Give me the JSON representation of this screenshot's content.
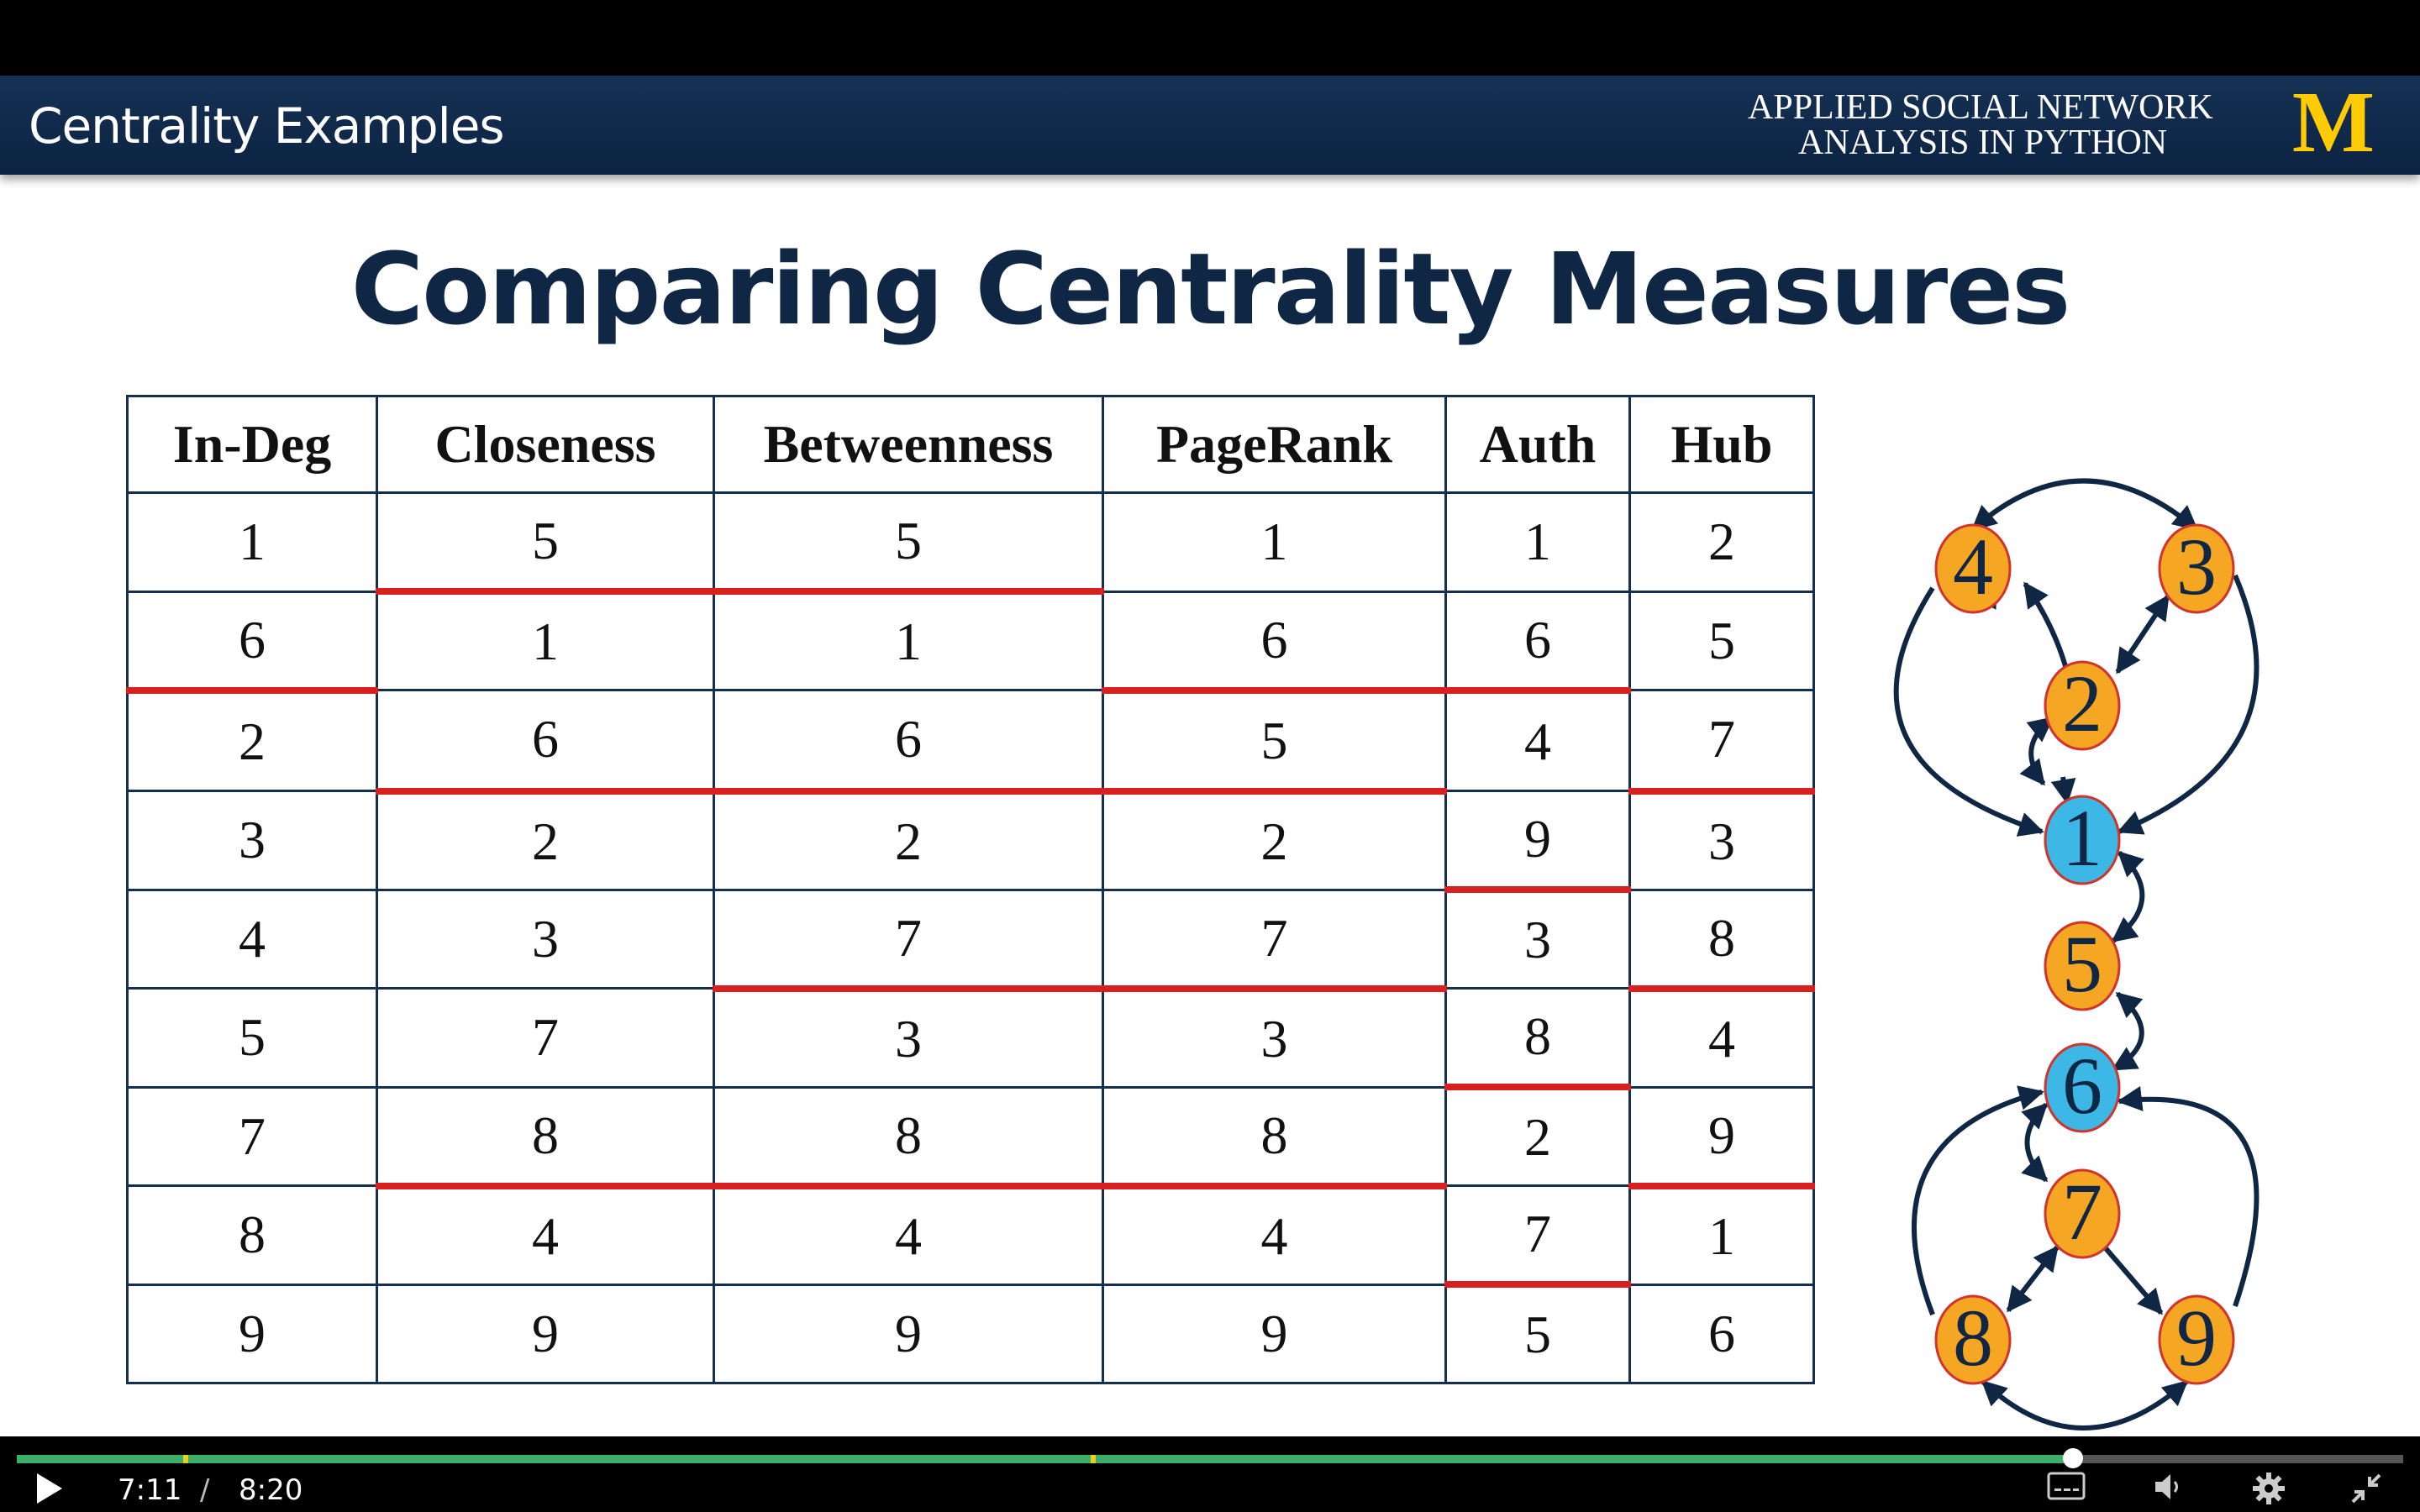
{
  "header": {
    "title": "Centrality Examples",
    "course_line1": "APPLIED SOCIAL NETWORK",
    "course_line2": "ANALYSIS IN PYTHON",
    "logo_letter": "M"
  },
  "page_title": "Comparing Centrality Measures",
  "table": {
    "headers": [
      "In-Deg",
      "Closeness",
      "Betweenness",
      "PageRank",
      "Auth",
      "Hub"
    ],
    "rows": [
      [
        "1",
        "5",
        "5",
        "1",
        "1",
        "2"
      ],
      [
        "6",
        "1",
        "1",
        "6",
        "6",
        "5"
      ],
      [
        "2",
        "6",
        "6",
        "5",
        "4",
        "7"
      ],
      [
        "3",
        "2",
        "2",
        "2",
        "9",
        "3"
      ],
      [
        "4",
        "3",
        "7",
        "7",
        "3",
        "8"
      ],
      [
        "5",
        "7",
        "3",
        "3",
        "8",
        "4"
      ],
      [
        "7",
        "8",
        "8",
        "8",
        "2",
        "9"
      ],
      [
        "8",
        "4",
        "4",
        "4",
        "7",
        "1"
      ],
      [
        "9",
        "9",
        "9",
        "9",
        "5",
        "6"
      ]
    ],
    "red_dividers_after_row": {
      "In-Deg": [
        2
      ],
      "Closeness": [
        1,
        3,
        7
      ],
      "Betweenness": [
        1,
        3,
        5,
        7
      ],
      "PageRank": [
        2,
        3,
        5,
        7
      ],
      "Auth": [
        2,
        4,
        6,
        8
      ],
      "Hub": [
        3,
        5,
        7
      ]
    }
  },
  "graph": {
    "highlight_nodes": [
      "1",
      "6"
    ],
    "colors": {
      "orange": "#f5a623",
      "blue": "#3db8e6",
      "node_border": "#d0342c",
      "edge": "#0f2744",
      "divider": "#d92020"
    },
    "nodes": [
      {
        "id": "1",
        "label": "1"
      },
      {
        "id": "2",
        "label": "2"
      },
      {
        "id": "3",
        "label": "3"
      },
      {
        "id": "4",
        "label": "4"
      },
      {
        "id": "5",
        "label": "5"
      },
      {
        "id": "6",
        "label": "6"
      },
      {
        "id": "7",
        "label": "7"
      },
      {
        "id": "8",
        "label": "8"
      },
      {
        "id": "9",
        "label": "9"
      }
    ]
  },
  "player": {
    "current_time": "7:11",
    "separator": "/",
    "total_time": "8:20",
    "progress_fraction": 0.8616
  }
}
